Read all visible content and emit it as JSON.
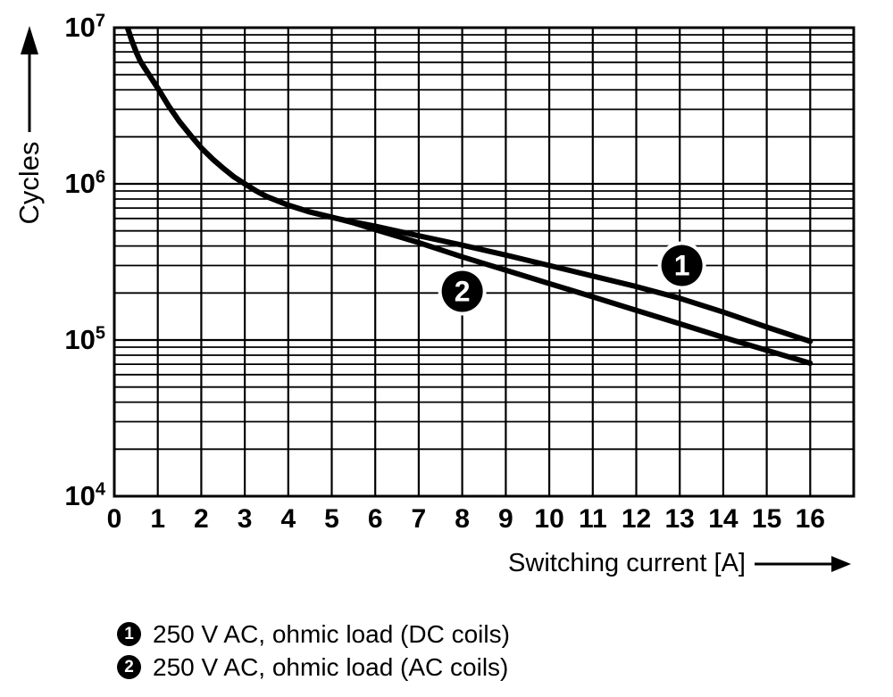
{
  "chart_data": {
    "type": "line",
    "xlabel": "Switching current [A]",
    "ylabel": "Cycles",
    "xlim": [
      0,
      17
    ],
    "ylim": [
      10000,
      10000000
    ],
    "y_scale": "log",
    "grid": "full log grid, black on white",
    "x_ticks": [
      "0",
      "1",
      "2",
      "3",
      "4",
      "5",
      "6",
      "7",
      "8",
      "9",
      "10",
      "11",
      "12",
      "13",
      "14",
      "15",
      "16"
    ],
    "y_ticks": [
      {
        "base": "10",
        "exp": "7"
      },
      {
        "base": "10",
        "exp": "6"
      },
      {
        "base": "10",
        "exp": "5"
      },
      {
        "base": "10",
        "exp": "4"
      }
    ],
    "colors": {
      "line": "#000000",
      "grid": "#000000",
      "background": "#ffffff",
      "marker_fill": "#000000",
      "marker_text": "#ffffff"
    },
    "series": [
      {
        "name": "250 V AC, ohmic load (DC coils)",
        "marker": {
          "label": "1",
          "x": 13.05,
          "cycles": 300000
        },
        "points": [
          [
            0.28,
            10500000
          ],
          [
            0.4,
            8300000
          ],
          [
            0.5,
            7000000
          ],
          [
            0.6,
            6100000
          ],
          [
            0.7,
            5500000
          ],
          [
            0.85,
            4750000
          ],
          [
            1,
            4100000
          ],
          [
            1.25,
            3150000
          ],
          [
            1.5,
            2500000
          ],
          [
            1.75,
            2050000
          ],
          [
            2,
            1700000
          ],
          [
            2.25,
            1450000
          ],
          [
            2.5,
            1260000
          ],
          [
            2.75,
            1110000
          ],
          [
            3,
            1000000
          ],
          [
            3.25,
            905000
          ],
          [
            3.5,
            830000
          ],
          [
            4,
            730000
          ],
          [
            4.5,
            660000
          ],
          [
            5,
            610000
          ],
          [
            5.5,
            570000
          ],
          [
            6,
            535000
          ],
          [
            7,
            465000
          ],
          [
            8,
            405000
          ],
          [
            9,
            350000
          ],
          [
            10,
            300000
          ],
          [
            11,
            257000
          ],
          [
            12,
            220000
          ],
          [
            13,
            185000
          ],
          [
            14,
            151000
          ],
          [
            15,
            121000
          ],
          [
            16,
            98000
          ]
        ]
      },
      {
        "name": "250 V AC, ohmic load (AC coils)",
        "marker": {
          "label": "2",
          "x": 8.0,
          "cycles": 205000
        },
        "points": [
          [
            0.28,
            10500000
          ],
          [
            0.4,
            8300000
          ],
          [
            0.5,
            7000000
          ],
          [
            0.6,
            6100000
          ],
          [
            0.7,
            5500000
          ],
          [
            0.85,
            4750000
          ],
          [
            1,
            4100000
          ],
          [
            1.25,
            3150000
          ],
          [
            1.5,
            2500000
          ],
          [
            1.75,
            2050000
          ],
          [
            2,
            1700000
          ],
          [
            2.25,
            1450000
          ],
          [
            2.5,
            1260000
          ],
          [
            2.75,
            1110000
          ],
          [
            3,
            1000000
          ],
          [
            3.25,
            905000
          ],
          [
            3.5,
            830000
          ],
          [
            4,
            730000
          ],
          [
            4.5,
            660000
          ],
          [
            5,
            612000
          ],
          [
            5.5,
            563000
          ],
          [
            6,
            510000
          ],
          [
            7,
            420000
          ],
          [
            8,
            341000
          ],
          [
            9,
            280000
          ],
          [
            10,
            230000
          ],
          [
            11,
            189000
          ],
          [
            12,
            155000
          ],
          [
            13,
            127000
          ],
          [
            14,
            104000
          ],
          [
            15,
            86000
          ],
          [
            16,
            71000
          ]
        ]
      }
    ],
    "legend": [
      {
        "symbol": "1",
        "label": "250 V AC, ohmic load (DC coils)"
      },
      {
        "symbol": "2",
        "label": "250 V AC, ohmic load (AC coils)"
      }
    ]
  }
}
